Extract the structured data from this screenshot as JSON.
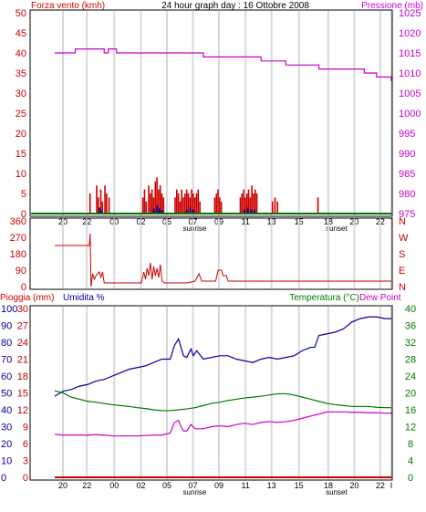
{
  "colors": {
    "wind": "#cc0000",
    "gust": "#000099",
    "pressure": "#cc00cc",
    "rain": "#cc0000",
    "humidity": "#000099",
    "temperature": "#007700",
    "dewpoint": "#cc00cc",
    "direction": "#cc0000",
    "zero_line": "#007700",
    "vgrid": "#d8d8d8",
    "frame": "#000000"
  },
  "header": {
    "wind_title": "Forza vento (kmh)",
    "date_title": "24 hour graph day : 16 Ottobre 2008",
    "pressure_title": "Pressione (mb)"
  },
  "bottom_header": {
    "rain_title": "Pioggia (mm)",
    "humidity_title": "Umidita %",
    "temperature_title": "Temperatura (°C)",
    "dewpoint_title": "Dew Point"
  },
  "x_axis": {
    "ticks": [
      "20",
      "22",
      "00",
      "02",
      "05",
      "07",
      "09",
      "11",
      "13",
      "15",
      "18",
      "20",
      "22",
      "I"
    ],
    "sunrise_label": "sunrise",
    "sunset_label": "sunset"
  },
  "chart_data": [
    {
      "type": "bar",
      "name": "wind",
      "y_left": {
        "ticks": [
          "0",
          "5",
          "10",
          "15",
          "20",
          "25",
          "30",
          "35",
          "40",
          "45",
          "50"
        ],
        "range": [
          0,
          50
        ]
      },
      "y_right": {
        "ticks": [
          "975",
          "980",
          "985",
          "990",
          "995",
          "1000",
          "1005",
          "1010",
          "1015",
          "1020",
          "1025"
        ],
        "range": [
          975,
          1025
        ]
      },
      "grid": true,
      "wind_bars": [
        [
          3.2,
          5
        ],
        [
          4.0,
          7
        ],
        [
          4.2,
          4
        ],
        [
          4.5,
          6
        ],
        [
          4.7,
          3
        ],
        [
          5.0,
          7
        ],
        [
          5.2,
          5
        ],
        [
          5.5,
          4
        ],
        [
          9.6,
          4
        ],
        [
          9.8,
          6
        ],
        [
          10.0,
          3
        ],
        [
          10.3,
          7
        ],
        [
          10.5,
          5
        ],
        [
          10.7,
          6
        ],
        [
          10.9,
          4
        ],
        [
          11.1,
          8
        ],
        [
          11.3,
          9
        ],
        [
          11.5,
          6
        ],
        [
          11.7,
          7
        ],
        [
          11.9,
          5
        ],
        [
          12.1,
          4
        ],
        [
          13.5,
          4
        ],
        [
          13.7,
          6
        ],
        [
          13.9,
          5
        ],
        [
          14.1,
          3
        ],
        [
          14.3,
          6
        ],
        [
          14.5,
          4
        ],
        [
          14.7,
          5
        ],
        [
          14.9,
          6
        ],
        [
          15.1,
          5
        ],
        [
          15.3,
          4
        ],
        [
          15.5,
          6
        ],
        [
          15.7,
          5
        ],
        [
          15.9,
          4
        ],
        [
          16.1,
          5
        ],
        [
          16.3,
          6
        ],
        [
          16.5,
          3
        ],
        [
          18.3,
          4
        ],
        [
          18.5,
          5
        ],
        [
          18.7,
          6
        ],
        [
          18.9,
          4
        ],
        [
          19.1,
          3
        ],
        [
          21.4,
          4
        ],
        [
          21.6,
          5
        ],
        [
          21.8,
          6
        ],
        [
          22.0,
          4
        ],
        [
          22.2,
          5
        ],
        [
          22.4,
          6
        ],
        [
          22.6,
          4
        ],
        [
          22.8,
          7
        ],
        [
          23.0,
          5
        ],
        [
          23.2,
          6
        ],
        [
          23.4,
          5
        ],
        [
          25.3,
          3
        ],
        [
          25.6,
          4
        ],
        [
          25.9,
          3
        ],
        [
          30.8,
          4
        ]
      ],
      "gust_bars": [
        [
          4.3,
          1.5
        ],
        [
          4.6,
          0.8
        ],
        [
          10.9,
          1.2
        ],
        [
          11.3,
          2.0
        ],
        [
          11.6,
          1.3
        ],
        [
          11.9,
          0.8
        ],
        [
          14.9,
          1.0
        ],
        [
          15.3,
          1.5
        ],
        [
          15.7,
          1.0
        ],
        [
          21.9,
          1.0
        ],
        [
          22.3,
          1.5
        ],
        [
          22.7,
          1.0
        ],
        [
          23.1,
          0.8
        ]
      ],
      "pressure": [
        [
          -1,
          1015
        ],
        [
          0.5,
          1015
        ],
        [
          1.5,
          1016
        ],
        [
          4.0,
          1016
        ],
        [
          5.0,
          1015
        ],
        [
          5.5,
          1016
        ],
        [
          6.5,
          1015
        ],
        [
          10.0,
          1015
        ],
        [
          13.0,
          1015
        ],
        [
          17.0,
          1014
        ],
        [
          20.0,
          1014
        ],
        [
          23.0,
          1014
        ],
        [
          24.0,
          1013
        ],
        [
          26.0,
          1013
        ],
        [
          27.0,
          1012
        ],
        [
          30.0,
          1012
        ],
        [
          31.0,
          1011
        ],
        [
          34.0,
          1011
        ],
        [
          36.5,
          1010
        ],
        [
          37.5,
          1010
        ],
        [
          38.0,
          1009
        ],
        [
          40.0,
          1009
        ],
        [
          40.5,
          1008
        ],
        [
          41.5,
          1008
        ]
      ]
    },
    {
      "type": "line",
      "name": "wind-direction",
      "y_left": {
        "ticks": [
          "0",
          "90",
          "180",
          "270",
          "360"
        ],
        "range": [
          0,
          360
        ]
      },
      "y_right": {
        "ticks": [
          "N",
          "E",
          "S",
          "W",
          "N"
        ]
      },
      "direction": [
        [
          -1,
          225
        ],
        [
          3.2,
          225
        ],
        [
          3.3,
          290
        ],
        [
          3.4,
          0
        ],
        [
          3.6,
          70
        ],
        [
          3.8,
          40
        ],
        [
          4.0,
          60
        ],
        [
          4.4,
          80
        ],
        [
          4.6,
          50
        ],
        [
          4.8,
          80
        ],
        [
          5.0,
          20
        ],
        [
          6.0,
          20
        ],
        [
          7.0,
          20
        ],
        [
          9.5,
          20
        ],
        [
          9.8,
          80
        ],
        [
          10.0,
          40
        ],
        [
          10.2,
          100
        ],
        [
          10.4,
          60
        ],
        [
          10.6,
          130
        ],
        [
          10.8,
          40
        ],
        [
          11.0,
          110
        ],
        [
          11.2,
          60
        ],
        [
          11.4,
          100
        ],
        [
          11.6,
          50
        ],
        [
          11.8,
          120
        ],
        [
          12.0,
          30
        ],
        [
          12.3,
          20
        ],
        [
          13.0,
          20
        ],
        [
          15.0,
          20
        ],
        [
          16.0,
          30
        ],
        [
          16.5,
          70
        ],
        [
          16.8,
          30
        ],
        [
          17.5,
          30
        ],
        [
          18.5,
          30
        ],
        [
          18.8,
          90
        ],
        [
          19.2,
          90
        ],
        [
          19.4,
          60
        ],
        [
          19.8,
          60
        ],
        [
          20.0,
          30
        ],
        [
          42,
          30
        ]
      ]
    },
    {
      "type": "line",
      "name": "temperature-humidity",
      "y_left_rain": {
        "ticks": [
          "0",
          "3",
          "6",
          "9",
          "12",
          "15",
          "18",
          "21",
          "24",
          "27",
          "30"
        ],
        "range": [
          0,
          30
        ]
      },
      "y_left_humidity": {
        "ticks": [
          "0",
          "10",
          "20",
          "30",
          "40",
          "50",
          "60",
          "70",
          "80",
          "90",
          "100"
        ],
        "range": [
          0,
          100
        ]
      },
      "y_right": {
        "ticks": [
          "0",
          "4",
          "8",
          "12",
          "16",
          "20",
          "24",
          "28",
          "32",
          "36",
          "40"
        ],
        "range": [
          0,
          40
        ]
      },
      "humidity": [
        [
          -1,
          48
        ],
        [
          0,
          51
        ],
        [
          1,
          52
        ],
        [
          2,
          54
        ],
        [
          3,
          55
        ],
        [
          4,
          57
        ],
        [
          5,
          58
        ],
        [
          6,
          60
        ],
        [
          7,
          62
        ],
        [
          8,
          64
        ],
        [
          9,
          65
        ],
        [
          10,
          66
        ],
        [
          11,
          68
        ],
        [
          12,
          70
        ],
        [
          13,
          70
        ],
        [
          13.5,
          78
        ],
        [
          14,
          82
        ],
        [
          14.3,
          77
        ],
        [
          14.6,
          72
        ],
        [
          15.0,
          71
        ],
        [
          15.5,
          76
        ],
        [
          15.8,
          72
        ],
        [
          16.2,
          75
        ],
        [
          17,
          70
        ],
        [
          18,
          71
        ],
        [
          19,
          72
        ],
        [
          20,
          72
        ],
        [
          21,
          70
        ],
        [
          22,
          69
        ],
        [
          23,
          68
        ],
        [
          24,
          70
        ],
        [
          25,
          71
        ],
        [
          26,
          70
        ],
        [
          27,
          71
        ],
        [
          28,
          72
        ],
        [
          29,
          75
        ],
        [
          30,
          77
        ],
        [
          30.5,
          77
        ],
        [
          31,
          84
        ],
        [
          32,
          85
        ],
        [
          33,
          86
        ],
        [
          34,
          88
        ],
        [
          35,
          92
        ],
        [
          36,
          94
        ],
        [
          37,
          95
        ],
        [
          38,
          95
        ],
        [
          39,
          94
        ],
        [
          40,
          94
        ],
        [
          41,
          94
        ]
      ],
      "temperature": [
        [
          -1,
          20.5
        ],
        [
          0,
          20
        ],
        [
          1,
          19
        ],
        [
          2,
          18.5
        ],
        [
          3,
          18
        ],
        [
          4,
          17.8
        ],
        [
          5,
          17.5
        ],
        [
          6,
          17.2
        ],
        [
          7,
          17.0
        ],
        [
          8,
          16.8
        ],
        [
          9,
          16.5
        ],
        [
          10,
          16.3
        ],
        [
          11,
          16.0
        ],
        [
          12,
          15.8
        ],
        [
          13,
          15.8
        ],
        [
          14,
          16.0
        ],
        [
          15,
          16.2
        ],
        [
          16,
          16.5
        ],
        [
          17,
          17.0
        ],
        [
          18,
          17.5
        ],
        [
          19,
          17.8
        ],
        [
          20,
          18.2
        ],
        [
          21,
          18.5
        ],
        [
          22,
          18.8
        ],
        [
          23,
          19.0
        ],
        [
          24,
          19.2
        ],
        [
          25,
          19.5
        ],
        [
          26,
          19.8
        ],
        [
          27,
          19.8
        ],
        [
          28,
          19.5
        ],
        [
          29,
          19.0
        ],
        [
          30,
          18.5
        ],
        [
          31,
          18.0
        ],
        [
          32,
          17.5
        ],
        [
          33,
          17.2
        ],
        [
          34,
          17.0
        ],
        [
          35,
          16.8
        ],
        [
          36,
          16.8
        ],
        [
          37,
          16.8
        ],
        [
          38,
          16.6
        ],
        [
          39,
          16.5
        ],
        [
          40,
          16.5
        ],
        [
          41,
          16.5
        ]
      ],
      "dewpoint": [
        [
          -1,
          10.2
        ],
        [
          0,
          10.0
        ],
        [
          1,
          10.0
        ],
        [
          2,
          10.0
        ],
        [
          3,
          10.0
        ],
        [
          4,
          10.1
        ],
        [
          5,
          10.0
        ],
        [
          6,
          9.8
        ],
        [
          7,
          9.8
        ],
        [
          8,
          9.8
        ],
        [
          9,
          9.8
        ],
        [
          10,
          9.9
        ],
        [
          11,
          10.0
        ],
        [
          12,
          10.0
        ],
        [
          13,
          10.5
        ],
        [
          13.5,
          13.0
        ],
        [
          14,
          13.5
        ],
        [
          14.3,
          12.0
        ],
        [
          14.6,
          11.0
        ],
        [
          15,
          11.0
        ],
        [
          15.5,
          12.5
        ],
        [
          16,
          11.5
        ],
        [
          17,
          11.5
        ],
        [
          18,
          12.0
        ],
        [
          19,
          12.2
        ],
        [
          20,
          12.0
        ],
        [
          21,
          12.5
        ],
        [
          22,
          12.8
        ],
        [
          23,
          12.5
        ],
        [
          24,
          13.0
        ],
        [
          25,
          13.2
        ],
        [
          26,
          13.0
        ],
        [
          27,
          13.2
        ],
        [
          28,
          13.5
        ],
        [
          29,
          14.0
        ],
        [
          30,
          14.5
        ],
        [
          31,
          15.0
        ],
        [
          32,
          15.5
        ],
        [
          33,
          15.5
        ],
        [
          34,
          15.5
        ],
        [
          35,
          15.4
        ],
        [
          36,
          15.4
        ],
        [
          37,
          15.3
        ],
        [
          38,
          15.3
        ],
        [
          39,
          15.2
        ],
        [
          40,
          15.2
        ],
        [
          41,
          15.0
        ]
      ],
      "rain": [
        [
          -1,
          0
        ],
        [
          41.5,
          0
        ]
      ]
    }
  ]
}
